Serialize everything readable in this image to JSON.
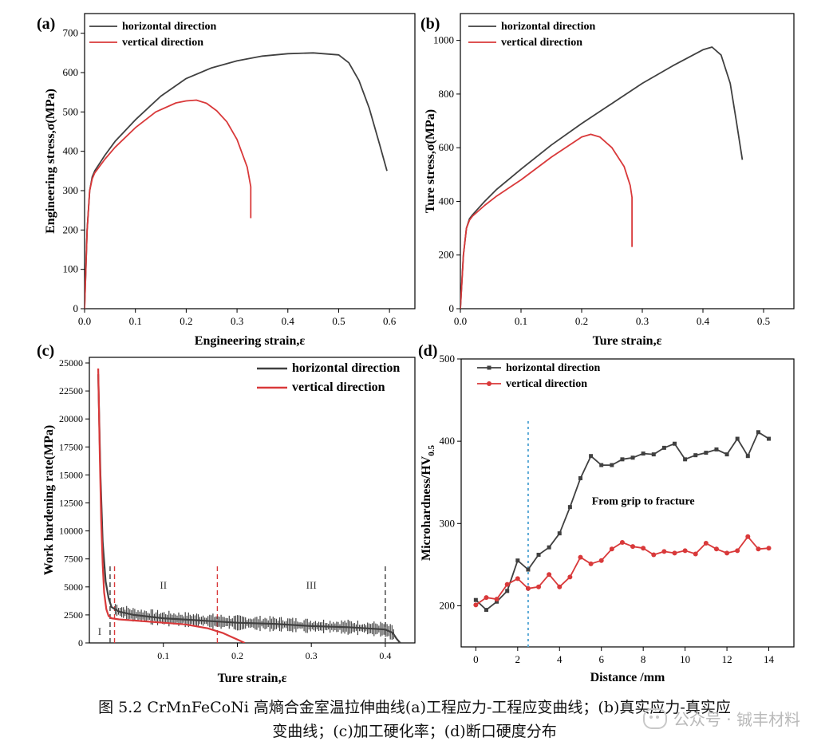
{
  "colors": {
    "horizontal": "#404040",
    "vertical": "#d9393a",
    "axis": "#000000",
    "dotted": "#5aa9d6"
  },
  "chart_data": [
    {
      "panel": "(a)",
      "type": "line",
      "xlabel": "Engineering strain,ε",
      "ylabel": "Engineering  stress,σ(MPa)",
      "xlim": [
        0,
        0.65
      ],
      "ylim": [
        0,
        750
      ],
      "xticks": [
        "0.0",
        "0.1",
        "0.2",
        "0.3",
        "0.4",
        "0.5",
        "0.6"
      ],
      "yticks": [
        "0",
        "100",
        "200",
        "300",
        "400",
        "500",
        "600",
        "700"
      ],
      "xtick_values": [
        0,
        0.1,
        0.2,
        0.3,
        0.4,
        0.5,
        0.6
      ],
      "ytick_values": [
        0,
        100,
        200,
        300,
        400,
        500,
        600,
        700
      ],
      "legend": "top-left",
      "series": [
        {
          "name": "horizontal direction",
          "color": "#404040",
          "x": [
            0,
            0.005,
            0.01,
            0.015,
            0.02,
            0.04,
            0.06,
            0.1,
            0.15,
            0.2,
            0.25,
            0.3,
            0.35,
            0.4,
            0.45,
            0.5,
            0.52,
            0.54,
            0.56,
            0.58,
            0.595
          ],
          "y": [
            0,
            200,
            300,
            335,
            350,
            390,
            425,
            480,
            540,
            585,
            612,
            630,
            642,
            648,
            650,
            645,
            625,
            580,
            510,
            420,
            350
          ]
        },
        {
          "name": "vertical  direction",
          "color": "#d9393a",
          "x": [
            0,
            0.005,
            0.01,
            0.015,
            0.02,
            0.04,
            0.06,
            0.1,
            0.14,
            0.18,
            0.2,
            0.22,
            0.24,
            0.26,
            0.28,
            0.3,
            0.32,
            0.327,
            0.327
          ],
          "y": [
            0,
            200,
            300,
            330,
            345,
            380,
            410,
            460,
            500,
            523,
            528,
            530,
            522,
            503,
            475,
            430,
            360,
            310,
            230
          ]
        }
      ]
    },
    {
      "panel": "(b)",
      "type": "line",
      "xlabel": "Ture strain,ε",
      "ylabel": "Ture  stress,σ(MPa)",
      "xlim": [
        0,
        0.55
      ],
      "ylim": [
        0,
        1100
      ],
      "xticks": [
        "0.0",
        "0.1",
        "0.2",
        "0.3",
        "0.4",
        "0.5"
      ],
      "yticks": [
        "0",
        "200",
        "400",
        "600",
        "800",
        "1000"
      ],
      "xtick_values": [
        0,
        0.1,
        0.2,
        0.3,
        0.4,
        0.5
      ],
      "ytick_values": [
        0,
        200,
        400,
        600,
        800,
        1000
      ],
      "legend": "top-left",
      "series": [
        {
          "name": "horizontal direction",
          "color": "#404040",
          "x": [
            0,
            0.005,
            0.01,
            0.015,
            0.02,
            0.04,
            0.06,
            0.1,
            0.15,
            0.2,
            0.25,
            0.3,
            0.35,
            0.4,
            0.415,
            0.43,
            0.445,
            0.455,
            0.465
          ],
          "y": [
            0,
            200,
            300,
            335,
            350,
            400,
            445,
            520,
            610,
            690,
            765,
            840,
            905,
            965,
            975,
            945,
            840,
            700,
            555
          ]
        },
        {
          "name": "vertical  direction",
          "color": "#d9393a",
          "x": [
            0,
            0.005,
            0.01,
            0.015,
            0.02,
            0.04,
            0.06,
            0.1,
            0.15,
            0.2,
            0.215,
            0.23,
            0.25,
            0.27,
            0.28,
            0.283,
            0.283
          ],
          "y": [
            0,
            200,
            300,
            330,
            345,
            385,
            420,
            480,
            565,
            640,
            650,
            640,
            600,
            530,
            460,
            415,
            230
          ]
        }
      ]
    },
    {
      "panel": "(c)",
      "type": "line",
      "xlabel": "Ture strain,ε",
      "ylabel": "Work hardening rate(MPa)",
      "xlim": [
        0.0,
        0.44
      ],
      "ylim": [
        0,
        25500
      ],
      "xticks": [
        "0.1",
        "0.2",
        "0.3",
        "0.4"
      ],
      "yticks": [
        "0",
        "2500",
        "5000",
        "7500",
        "10000",
        "12500",
        "15000",
        "17500",
        "20000",
        "22500",
        "25000"
      ],
      "xtick_values": [
        0.1,
        0.2,
        0.3,
        0.4
      ],
      "ytick_values": [
        0,
        2500,
        5000,
        7500,
        10000,
        12500,
        15000,
        17500,
        20000,
        22500,
        25000
      ],
      "legend": "top-right",
      "stage_labels": [
        "I",
        "II",
        "III"
      ],
      "stage_values": [
        0.014,
        0.1,
        0.3
      ],
      "stage_lines": [
        {
          "x": 0.028,
          "color": "#404040"
        },
        {
          "x": 0.034,
          "color": "#d9393a"
        },
        {
          "x": 0.173,
          "color": "#d9393a"
        },
        {
          "x": 0.4,
          "color": "#404040"
        }
      ],
      "series": [
        {
          "name": "horizontal direction",
          "color": "#404040",
          "x": [
            0.012,
            0.015,
            0.018,
            0.022,
            0.026,
            0.03,
            0.04,
            0.06,
            0.1,
            0.15,
            0.2,
            0.25,
            0.3,
            0.35,
            0.4,
            0.41,
            0.415,
            0.42
          ],
          "y": [
            24000,
            15000,
            9000,
            5500,
            4000,
            3200,
            2800,
            2500,
            2200,
            2000,
            1800,
            1700,
            1500,
            1400,
            1200,
            900,
            400,
            0
          ]
        },
        {
          "name": "vertical  direction",
          "color": "#d9393a",
          "x": [
            0.012,
            0.014,
            0.016,
            0.018,
            0.02,
            0.023,
            0.026,
            0.03,
            0.04,
            0.06,
            0.1,
            0.13,
            0.16,
            0.18,
            0.19,
            0.2,
            0.205,
            0.21
          ],
          "y": [
            24500,
            17000,
            11000,
            7000,
            4500,
            3000,
            2400,
            2200,
            2100,
            2000,
            1800,
            1650,
            1300,
            900,
            600,
            300,
            150,
            0
          ]
        }
      ]
    },
    {
      "panel": "(d)",
      "type": "line",
      "xlabel": "Distance /mm",
      "ylabel": "Microhardness/HV",
      "ylabel_subscript": "0.5",
      "annotation": "From grip to fracture",
      "xlim": [
        -0.7,
        15.2
      ],
      "ylim": [
        150,
        500
      ],
      "xticks": [
        "0",
        "2",
        "4",
        "6",
        "8",
        "10",
        "12",
        "14"
      ],
      "yticks": [
        "200",
        "300",
        "400",
        "500"
      ],
      "xtick_values": [
        0,
        2,
        4,
        6,
        8,
        10,
        12,
        14
      ],
      "ytick_values": [
        200,
        300,
        400,
        500
      ],
      "dotted_line_x": 2.5,
      "legend": "top-left",
      "series": [
        {
          "name": "horizontal direction",
          "color": "#404040",
          "marker": "square",
          "x": [
            0,
            0.5,
            1,
            1.5,
            2,
            2.5,
            3,
            3.5,
            4,
            4.5,
            5,
            5.5,
            6,
            6.5,
            7,
            7.5,
            8,
            8.5,
            9,
            9.5,
            10,
            10.5,
            11,
            11.5,
            12,
            12.5,
            13,
            13.5,
            14
          ],
          "y": [
            207,
            195,
            205,
            218,
            255,
            244,
            262,
            271,
            288,
            320,
            355,
            382,
            371,
            371,
            378,
            380,
            385,
            384,
            392,
            397,
            378,
            383,
            386,
            390,
            384,
            403,
            382,
            411,
            403
          ]
        },
        {
          "name": "vertical  direction",
          "color": "#d9393a",
          "marker": "circle",
          "x": [
            0,
            0.5,
            1,
            1.5,
            2,
            2.5,
            3,
            3.5,
            4,
            4.5,
            5,
            5.5,
            6,
            6.5,
            7,
            7.5,
            8,
            8.5,
            9,
            9.5,
            10,
            10.5,
            11,
            11.5,
            12,
            12.5,
            13,
            13.5,
            14
          ],
          "y": [
            201,
            210,
            208,
            226,
            233,
            221,
            223,
            238,
            223,
            235,
            259,
            251,
            255,
            269,
            277,
            272,
            270,
            262,
            266,
            264,
            267,
            263,
            276,
            269,
            264,
            267,
            284,
            269,
            270
          ]
        }
      ]
    }
  ],
  "caption": {
    "line1": "图 5.2 CrMnFeCoNi 高熵合金室温拉伸曲线(a)工程应力-工程应变曲线；(b)真实应力-真实应",
    "line2": "变曲线；(c)加工硬化率；(d)断口硬度分布"
  },
  "watermark": "公众号 · 铖丰材料"
}
